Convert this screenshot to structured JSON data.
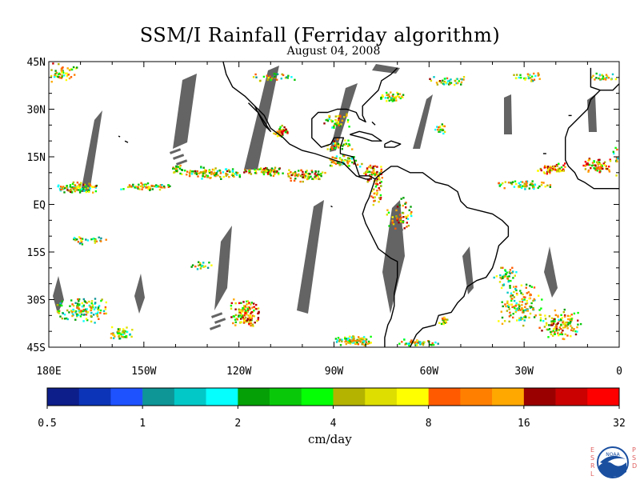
{
  "title": "SSM/I Rainfall (Ferriday algorithm)",
  "subtitle": "August 04, 2008",
  "map": {
    "lon_range": [
      -180,
      0
    ],
    "lat_range": [
      -45,
      45
    ],
    "lat_ticks": [
      {
        "value": 45,
        "label": "45N"
      },
      {
        "value": 30,
        "label": "30N"
      },
      {
        "value": 15,
        "label": "15N"
      },
      {
        "value": 0,
        "label": "EQ"
      },
      {
        "value": -15,
        "label": "15S"
      },
      {
        "value": -30,
        "label": "30S"
      },
      {
        "value": -45,
        "label": "45S"
      }
    ],
    "lon_ticks": [
      {
        "value": -180,
        "label": "180E"
      },
      {
        "value": -150,
        "label": "150W"
      },
      {
        "value": -120,
        "label": "120W"
      },
      {
        "value": -90,
        "label": "90W"
      },
      {
        "value": -60,
        "label": "60W"
      },
      {
        "value": -30,
        "label": "30W"
      },
      {
        "value": 0,
        "label": "0"
      }
    ],
    "no_data_color": "#646464",
    "coast_color": "#000000"
  },
  "colorbar": {
    "unit_label": "cm/day",
    "tick_labels": [
      "0.5",
      "1",
      "2",
      "4",
      "8",
      "16",
      "32"
    ],
    "colors": [
      "#0d1d8a",
      "#0c34b8",
      "#1f52ff",
      "#0e9596",
      "#02c8c8",
      "#05ffff",
      "#04a005",
      "#08c809",
      "#05ff05",
      "#b3b300",
      "#dede00",
      "#ffff00",
      "#ff5a00",
      "#ff8000",
      "#ffa800",
      "#9a0000",
      "#cb0000",
      "#ff0000"
    ]
  },
  "logo": {
    "left_letters": [
      "E",
      "S",
      "R",
      "L"
    ],
    "right_letters": [
      "P",
      "S",
      "D"
    ],
    "emblem_text": "NOAA",
    "accent_color": "#e06060",
    "emblem_color": "#1a4fa0"
  }
}
